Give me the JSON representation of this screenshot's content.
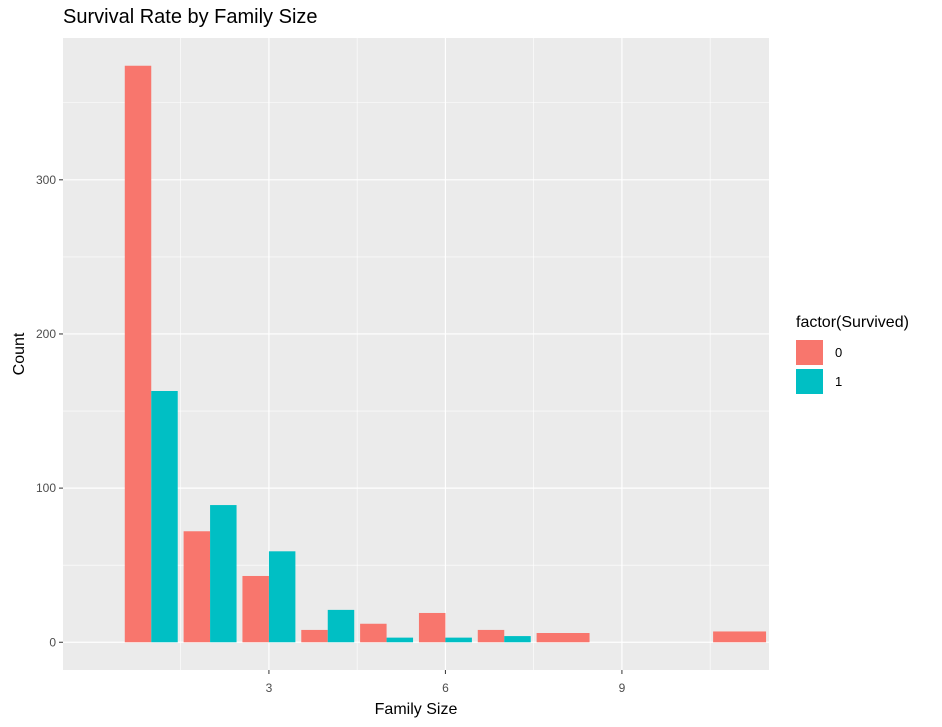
{
  "chart_data": {
    "type": "bar",
    "title": "Survival Rate by Family Size",
    "xlabel": "Family Size",
    "ylabel": "Count",
    "xlim": [
      -0.5,
      11.5
    ],
    "ylim": [
      -18,
      392
    ],
    "x_ticks": [
      3,
      6,
      9
    ],
    "y_ticks": [
      0,
      100,
      200,
      300
    ],
    "grid": true,
    "legend_title": "factor(Survived)",
    "legend_position": "right",
    "bar_width": 0.9,
    "x": [
      1,
      2,
      3,
      4,
      5,
      6,
      7,
      8,
      11
    ],
    "series": [
      {
        "name": "0",
        "color": "#F8766D",
        "values": [
          374,
          72,
          43,
          8,
          12,
          19,
          8,
          6,
          7
        ]
      },
      {
        "name": "1",
        "color": "#00BFC4",
        "values": [
          163,
          89,
          59,
          21,
          3,
          3,
          4,
          0,
          0
        ]
      }
    ]
  }
}
